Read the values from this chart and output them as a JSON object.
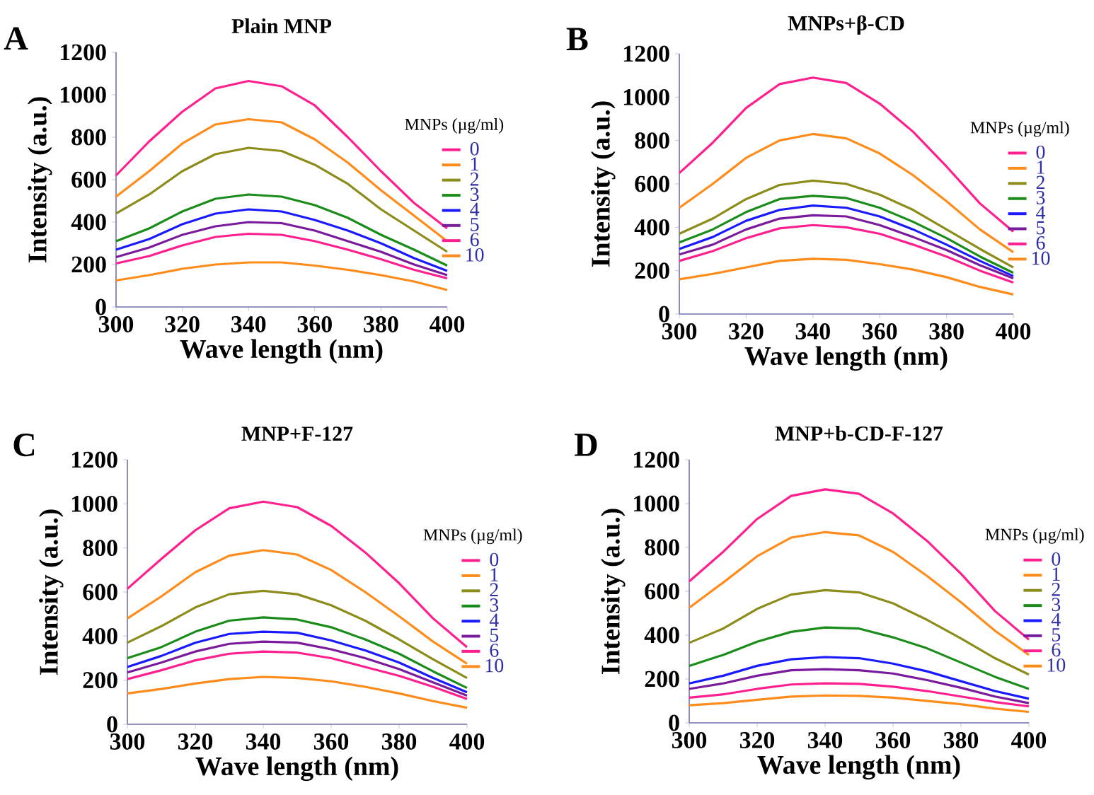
{
  "chart_data": [
    {
      "type": "line",
      "title": "Plain MNP",
      "xlabel": "Wave length (nm)",
      "ylabel": "Intensity (a.u.)",
      "legend_title": "MNPs (µg/ml)",
      "annotations": [
        "A"
      ],
      "legend": "right",
      "line_style": "solid",
      "x": [
        300,
        310,
        320,
        330,
        340,
        350,
        360,
        370,
        380,
        390,
        400
      ],
      "xlim": [
        300,
        400
      ],
      "ylim": [
        0,
        1200
      ],
      "xticks": [
        300,
        320,
        340,
        360,
        380,
        400
      ],
      "yticks": [
        0,
        200,
        400,
        600,
        800,
        1000,
        1200
      ],
      "series": [
        {
          "name": "0",
          "color": "#ff1f8f",
          "values": [
            620,
            780,
            920,
            1030,
            1065,
            1040,
            950,
            800,
            640,
            490,
            370
          ]
        },
        {
          "name": "1",
          "color": "#ff8c1a",
          "values": [
            520,
            640,
            770,
            860,
            885,
            870,
            790,
            680,
            550,
            430,
            310
          ]
        },
        {
          "name": "2",
          "color": "#8c8c1a",
          "values": [
            440,
            530,
            640,
            720,
            750,
            735,
            670,
            580,
            460,
            360,
            260
          ]
        },
        {
          "name": "3",
          "color": "#1a8c1a",
          "values": [
            310,
            370,
            450,
            510,
            530,
            520,
            480,
            420,
            340,
            270,
            195
          ]
        },
        {
          "name": "4",
          "color": "#1a1aff",
          "values": [
            270,
            320,
            390,
            440,
            460,
            450,
            410,
            360,
            300,
            230,
            170
          ]
        },
        {
          "name": "5",
          "color": "#7a1a9c",
          "values": [
            235,
            280,
            340,
            380,
            400,
            395,
            360,
            310,
            260,
            200,
            150
          ]
        },
        {
          "name": "6",
          "color": "#ff1f8f",
          "values": [
            205,
            240,
            290,
            330,
            345,
            340,
            310,
            270,
            225,
            175,
            135
          ]
        },
        {
          "name": "10",
          "color": "#ff8c1a",
          "values": [
            125,
            150,
            180,
            200,
            210,
            210,
            195,
            175,
            150,
            120,
            80
          ]
        }
      ]
    },
    {
      "type": "line",
      "title": "MNPs+β-CD",
      "xlabel": "Wave length (nm)",
      "ylabel": "Intensity (a.u.)",
      "legend_title": "MNPs (µg/ml)",
      "annotations": [
        "B"
      ],
      "legend": "right",
      "line_style": "solid",
      "x": [
        300,
        310,
        320,
        330,
        340,
        350,
        360,
        370,
        380,
        390,
        400
      ],
      "xlim": [
        300,
        400
      ],
      "ylim": [
        0,
        1200
      ],
      "xticks": [
        300,
        320,
        340,
        360,
        380,
        400
      ],
      "yticks": [
        0,
        200,
        400,
        600,
        800,
        1000,
        1200
      ],
      "series": [
        {
          "name": "0",
          "color": "#ff1f8f",
          "values": [
            650,
            790,
            950,
            1060,
            1090,
            1065,
            970,
            840,
            680,
            510,
            380
          ]
        },
        {
          "name": "1",
          "color": "#ff8c1a",
          "values": [
            490,
            600,
            720,
            800,
            830,
            810,
            740,
            640,
            520,
            390,
            285
          ]
        },
        {
          "name": "2",
          "color": "#8c8c1a",
          "values": [
            370,
            440,
            530,
            595,
            615,
            600,
            550,
            480,
            390,
            300,
            215
          ]
        },
        {
          "name": "3",
          "color": "#1a8c1a",
          "values": [
            330,
            390,
            470,
            530,
            545,
            535,
            490,
            425,
            350,
            265,
            190
          ]
        },
        {
          "name": "4",
          "color": "#1a1aff",
          "values": [
            300,
            355,
            430,
            480,
            500,
            490,
            450,
            390,
            320,
            245,
            175
          ]
        },
        {
          "name": "5",
          "color": "#7a1a9c",
          "values": [
            275,
            320,
            390,
            440,
            455,
            450,
            410,
            355,
            295,
            225,
            165
          ]
        },
        {
          "name": "6",
          "color": "#ff1f8f",
          "values": [
            245,
            290,
            350,
            395,
            410,
            400,
            370,
            320,
            265,
            200,
            145
          ]
        },
        {
          "name": "10",
          "color": "#ff8c1a",
          "values": [
            160,
            185,
            215,
            245,
            255,
            250,
            230,
            205,
            170,
            125,
            90
          ]
        }
      ]
    },
    {
      "type": "line",
      "title": "MNP+F-127",
      "xlabel": "Wave length (nm)",
      "ylabel": "Intensity (a.u.)",
      "legend_title": "MNPs (µg/ml)",
      "annotations": [
        "C"
      ],
      "legend": "right",
      "line_style": "solid",
      "x": [
        300,
        310,
        320,
        330,
        340,
        350,
        360,
        370,
        380,
        390,
        400
      ],
      "xlim": [
        300,
        400
      ],
      "ylim": [
        0,
        1200
      ],
      "xticks": [
        300,
        320,
        340,
        360,
        380,
        400
      ],
      "yticks": [
        0,
        200,
        400,
        600,
        800,
        1000,
        1200
      ],
      "series": [
        {
          "name": "0",
          "color": "#ff1f8f",
          "values": [
            615,
            750,
            880,
            980,
            1010,
            985,
            900,
            780,
            640,
            480,
            350
          ]
        },
        {
          "name": "1",
          "color": "#ff8c1a",
          "values": [
            480,
            580,
            690,
            765,
            790,
            770,
            700,
            600,
            490,
            375,
            275
          ]
        },
        {
          "name": "2",
          "color": "#8c8c1a",
          "values": [
            370,
            445,
            530,
            590,
            605,
            590,
            540,
            470,
            385,
            295,
            210
          ]
        },
        {
          "name": "3",
          "color": "#1a8c1a",
          "values": [
            300,
            350,
            420,
            470,
            485,
            475,
            440,
            385,
            320,
            240,
            165
          ]
        },
        {
          "name": "4",
          "color": "#1a1aff",
          "values": [
            260,
            310,
            370,
            410,
            420,
            415,
            380,
            335,
            280,
            210,
            145
          ]
        },
        {
          "name": "5",
          "color": "#7a1a9c",
          "values": [
            235,
            280,
            330,
            365,
            375,
            370,
            340,
            300,
            250,
            190,
            130
          ]
        },
        {
          "name": "6",
          "color": "#ff1f8f",
          "values": [
            205,
            245,
            290,
            320,
            330,
            325,
            300,
            260,
            220,
            170,
            115
          ]
        },
        {
          "name": "10",
          "color": "#ff8c1a",
          "values": [
            140,
            160,
            185,
            205,
            215,
            210,
            195,
            170,
            140,
            105,
            75
          ]
        }
      ]
    },
    {
      "type": "line",
      "title": "MNP+b-CD-F-127",
      "xlabel": "Wave length (nm)",
      "ylabel": "Intensity (a.u.)",
      "legend_title": "MNPs (µg/ml)",
      "annotations": [
        "D"
      ],
      "legend": "right",
      "line_style": "solid",
      "x": [
        300,
        310,
        320,
        330,
        340,
        350,
        360,
        370,
        380,
        390,
        400
      ],
      "xlim": [
        300,
        400
      ],
      "ylim": [
        0,
        1200
      ],
      "xticks": [
        300,
        320,
        340,
        360,
        380,
        400
      ],
      "yticks": [
        0,
        200,
        400,
        600,
        800,
        1000,
        1200
      ],
      "series": [
        {
          "name": "0",
          "color": "#ff1f8f",
          "values": [
            645,
            780,
            930,
            1035,
            1065,
            1045,
            955,
            830,
            680,
            510,
            380
          ]
        },
        {
          "name": "1",
          "color": "#ff8c1a",
          "values": [
            525,
            640,
            760,
            845,
            870,
            855,
            780,
            670,
            550,
            420,
            310
          ]
        },
        {
          "name": "2",
          "color": "#8c8c1a",
          "values": [
            365,
            430,
            520,
            585,
            605,
            595,
            545,
            470,
            385,
            295,
            220
          ]
        },
        {
          "name": "3",
          "color": "#1a8c1a",
          "values": [
            260,
            310,
            370,
            415,
            435,
            430,
            390,
            340,
            275,
            210,
            155
          ]
        },
        {
          "name": "4",
          "color": "#1a1aff",
          "values": [
            180,
            215,
            260,
            290,
            300,
            295,
            270,
            235,
            190,
            145,
            110
          ]
        },
        {
          "name": "5",
          "color": "#7a1a9c",
          "values": [
            155,
            180,
            215,
            240,
            245,
            240,
            225,
            195,
            160,
            120,
            90
          ]
        },
        {
          "name": "6",
          "color": "#ff1f8f",
          "values": [
            115,
            130,
            155,
            175,
            180,
            178,
            165,
            145,
            120,
            95,
            75
          ]
        },
        {
          "name": "10",
          "color": "#ff8c1a",
          "values": [
            80,
            90,
            105,
            120,
            125,
            123,
            115,
            100,
            85,
            65,
            50
          ]
        }
      ]
    }
  ]
}
